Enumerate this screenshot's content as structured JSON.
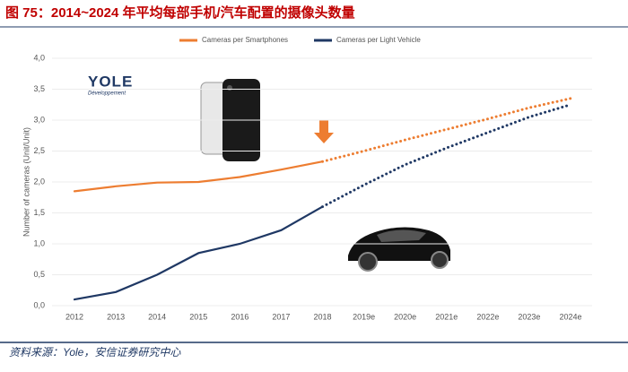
{
  "chart_data": {
    "type": "line",
    "title": "图 75：2014~2024 年平均每部手机/汽车配置的摄像头数量",
    "y_label": "Number of cameras (Unit/Unit)",
    "source": "资料来源：Yole，安信证券研究中心",
    "logo": {
      "name": "YOLE",
      "tagline": "Développement"
    },
    "categories": [
      "2012",
      "2013",
      "2014",
      "2015",
      "2016",
      "2017",
      "2018",
      "2019e",
      "2020e",
      "2021e",
      "2022e",
      "2023e",
      "2024e"
    ],
    "series": [
      {
        "name": "Cameras per Smartphones",
        "color": "#ed7d31",
        "values": [
          1.85,
          1.93,
          1.99,
          2.0,
          2.08,
          2.2,
          2.33,
          2.5,
          2.68,
          2.85,
          3.02,
          3.2,
          3.35
        ]
      },
      {
        "name": "Cameras per Light Vehicle",
        "color": "#1f3864",
        "values": [
          0.1,
          0.22,
          0.5,
          0.85,
          1.0,
          1.22,
          1.6,
          1.95,
          2.28,
          2.55,
          2.8,
          3.05,
          3.25
        ]
      }
    ],
    "ylim": [
      0,
      4
    ],
    "yticks": [
      {
        "value": 0,
        "label": "0,0"
      },
      {
        "value": 0.5,
        "label": "0,5"
      },
      {
        "value": 1,
        "label": "1,0"
      },
      {
        "value": 1.5,
        "label": "1,5"
      },
      {
        "value": 2,
        "label": "2,0"
      },
      {
        "value": 2.5,
        "label": "2,5"
      },
      {
        "value": 3,
        "label": "3,0"
      },
      {
        "value": 3.5,
        "label": "3,5"
      },
      {
        "value": 4,
        "label": "4,0"
      }
    ],
    "grid": true
  }
}
